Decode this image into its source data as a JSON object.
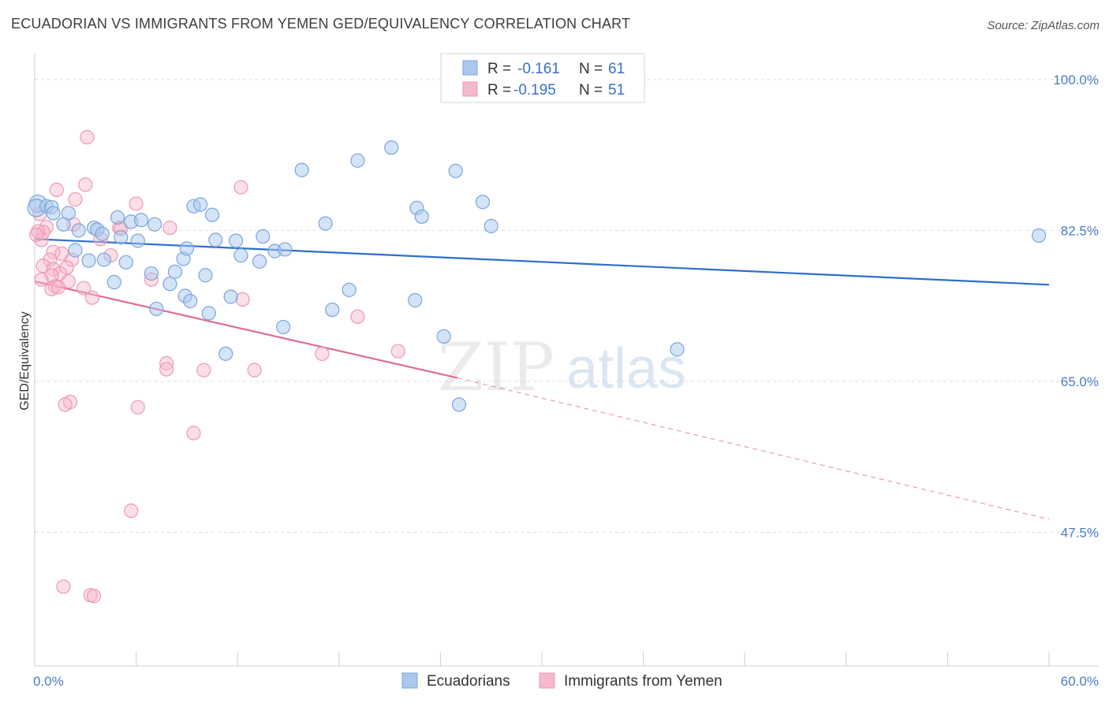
{
  "header": {
    "title": "ECUADORIAN VS IMMIGRANTS FROM YEMEN GED/EQUIVALENCY CORRELATION CHART",
    "source": "Source: ZipAtlas.com"
  },
  "watermark": {
    "part1": "ZIP",
    "part2": "atlas"
  },
  "legend": {
    "rows": [
      {
        "r_label": "R =",
        "r_value": "-0.161",
        "n_label": "N =",
        "n_value": "61"
      },
      {
        "r_label": "R =",
        "r_value": "-0.195",
        "n_label": "N =",
        "n_value": "51"
      }
    ]
  },
  "bottom_legend": {
    "items": [
      "Ecuadorians",
      "Immigrants from Yemen"
    ]
  },
  "colors": {
    "blue_fill": "#aac8ee",
    "blue_stroke": "#7aa5dc",
    "blue_line": "#2b6fcb",
    "pink_fill": "#f6b8cb",
    "pink_stroke": "#ee98b3",
    "pink_line": "#e06b93",
    "grid": "#dddddd",
    "label_blue": "#4a7cc9"
  },
  "chart_data": {
    "type": "scatter",
    "title": "ECUADORIAN VS IMMIGRANTS FROM YEMEN GED/EQUIVALENCY CORRELATION CHART",
    "xlabel": "",
    "ylabel": "GED/Equivalency",
    "xlim": [
      0,
      60
    ],
    "ylim": [
      32,
      103
    ],
    "x_tick_labels": [
      "0.0%",
      "60.0%"
    ],
    "y_tick_labels": [
      "100.0%",
      "82.5%",
      "65.0%",
      "47.5%"
    ],
    "y_tick_values": [
      100,
      82.5,
      65,
      47.5
    ],
    "grid": true,
    "legend_position": "top-center",
    "series": [
      {
        "name": "Ecuadorians",
        "color": "#aac8ee",
        "r": -0.161,
        "n": 61,
        "trend": {
          "x": [
            0,
            60
          ],
          "y": [
            81.5,
            76.2
          ]
        },
        "points": [
          [
            0.2,
            85.6
          ],
          [
            0.1,
            85.1
          ],
          [
            0.7,
            85.3
          ],
          [
            1.0,
            85.2
          ],
          [
            1.1,
            84.5
          ],
          [
            2.0,
            84.5
          ],
          [
            1.7,
            83.2
          ],
          [
            2.6,
            82.5
          ],
          [
            3.5,
            82.8
          ],
          [
            3.7,
            82.6
          ],
          [
            4.0,
            82.1
          ],
          [
            4.9,
            84.0
          ],
          [
            5.7,
            83.5
          ],
          [
            6.3,
            83.7
          ],
          [
            7.1,
            83.2
          ],
          [
            6.1,
            81.3
          ],
          [
            5.1,
            81.7
          ],
          [
            2.4,
            80.2
          ],
          [
            4.1,
            79.1
          ],
          [
            3.2,
            79.0
          ],
          [
            5.4,
            78.8
          ],
          [
            8.8,
            79.2
          ],
          [
            9.0,
            80.4
          ],
          [
            9.4,
            85.3
          ],
          [
            9.8,
            85.5
          ],
          [
            10.5,
            84.3
          ],
          [
            10.7,
            81.4
          ],
          [
            11.9,
            81.3
          ],
          [
            12.2,
            79.6
          ],
          [
            13.5,
            81.8
          ],
          [
            13.3,
            78.9
          ],
          [
            14.2,
            80.1
          ],
          [
            14.8,
            80.3
          ],
          [
            8.3,
            77.7
          ],
          [
            8.0,
            76.3
          ],
          [
            6.9,
            77.5
          ],
          [
            4.7,
            76.5
          ],
          [
            8.9,
            74.9
          ],
          [
            9.2,
            74.3
          ],
          [
            10.1,
            77.3
          ],
          [
            10.3,
            72.9
          ],
          [
            11.6,
            74.8
          ],
          [
            7.2,
            73.4
          ],
          [
            11.3,
            68.2
          ],
          [
            14.7,
            71.3
          ],
          [
            17.2,
            83.3
          ],
          [
            17.6,
            73.3
          ],
          [
            18.6,
            75.6
          ],
          [
            15.8,
            89.5
          ],
          [
            19.1,
            90.6
          ],
          [
            21.1,
            92.1
          ],
          [
            22.6,
            85.1
          ],
          [
            22.9,
            84.1
          ],
          [
            22.5,
            74.4
          ],
          [
            24.2,
            70.2
          ],
          [
            24.9,
            89.4
          ],
          [
            26.5,
            85.8
          ],
          [
            25.1,
            62.3
          ],
          [
            38.0,
            68.7
          ],
          [
            59.4,
            81.9
          ],
          [
            27.0,
            83.0
          ]
        ]
      },
      {
        "name": "Immigrants from Yemen",
        "color": "#f6b8cb",
        "r": -0.195,
        "n": 51,
        "trend_solid": {
          "x": [
            0,
            25
          ],
          "y": [
            76.6,
            65.4
          ]
        },
        "trend_dashed": {
          "x": [
            25,
            60
          ],
          "y": [
            65.4,
            49.0
          ]
        },
        "points": [
          [
            3.1,
            93.3
          ],
          [
            3.0,
            87.8
          ],
          [
            1.3,
            87.2
          ],
          [
            2.4,
            86.1
          ],
          [
            0.3,
            84.4
          ],
          [
            0.7,
            82.9
          ],
          [
            0.5,
            82.3
          ],
          [
            0.2,
            82.4
          ],
          [
            0.4,
            81.4
          ],
          [
            2.3,
            83.2
          ],
          [
            5.0,
            82.8
          ],
          [
            5.1,
            82.7
          ],
          [
            3.9,
            81.5
          ],
          [
            8.0,
            82.8
          ],
          [
            6.0,
            85.6
          ],
          [
            12.2,
            87.5
          ],
          [
            1.1,
            80.0
          ],
          [
            1.6,
            79.8
          ],
          [
            0.9,
            79.1
          ],
          [
            0.5,
            78.4
          ],
          [
            1.1,
            78.0
          ],
          [
            2.2,
            79.1
          ],
          [
            1.9,
            78.2
          ],
          [
            1.5,
            77.5
          ],
          [
            1.0,
            77.3
          ],
          [
            0.4,
            76.8
          ],
          [
            1.2,
            76.0
          ],
          [
            1.0,
            75.7
          ],
          [
            1.4,
            75.9
          ],
          [
            2.0,
            76.6
          ],
          [
            2.9,
            75.8
          ],
          [
            3.4,
            74.7
          ],
          [
            4.5,
            79.6
          ],
          [
            6.9,
            76.8
          ],
          [
            12.3,
            74.5
          ],
          [
            17.0,
            68.2
          ],
          [
            19.1,
            72.5
          ],
          [
            21.5,
            68.5
          ],
          [
            7.8,
            67.1
          ],
          [
            7.8,
            66.4
          ],
          [
            10.0,
            66.3
          ],
          [
            13.0,
            66.3
          ],
          [
            2.1,
            62.6
          ],
          [
            1.8,
            62.3
          ],
          [
            6.1,
            62.0
          ],
          [
            9.4,
            59.0
          ],
          [
            5.7,
            50.0
          ],
          [
            1.7,
            41.2
          ],
          [
            3.3,
            40.2
          ],
          [
            3.5,
            40.1
          ],
          [
            0.1,
            82.0
          ]
        ]
      }
    ]
  }
}
